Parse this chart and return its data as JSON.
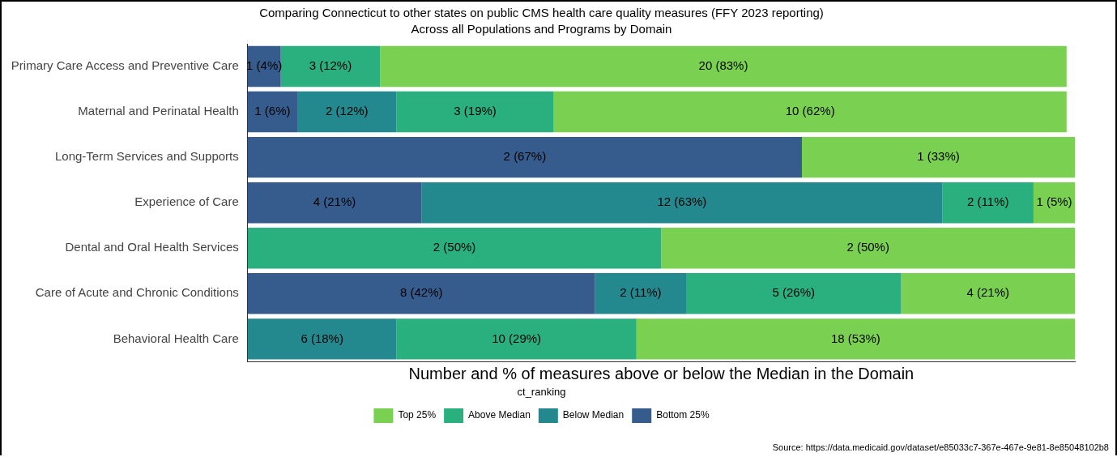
{
  "chart_data": {
    "type": "bar",
    "orientation": "horizontal",
    "stacked": true,
    "tick_labels": "y",
    "title": "Comparing Connecticut to other states on public CMS health care quality measures (FFY 2023 reporting)",
    "subtitle": "Across all Populations and Programs by Domain",
    "xlabel": "Number and % of measures above or below the Median in the Domain",
    "legend_title": "ct_ranking",
    "legend": "bottom",
    "annotations": [
      "Source: https://data.medicaid.gov/dataset/e85033c7-367e-467e-9e81-8e85048102b8"
    ],
    "categories": [
      "Primary Care Access and Preventive Care",
      "Maternal and Perinatal Health",
      "Long-Term Services and Supports",
      "Experience of Care",
      "Dental and Oral Health Services",
      "Care of Acute and Chronic Conditions",
      "Behavioral Health Care"
    ],
    "series": [
      {
        "name": "Bottom 25%",
        "color": "#365c8d",
        "values": [
          4,
          6,
          67,
          21,
          null,
          42,
          null
        ],
        "value_labels": [
          "1 (4%)",
          "1 (6%)",
          "2 (67%)",
          "4 (21%)",
          null,
          "8 (42%)",
          null
        ]
      },
      {
        "name": "Below Median",
        "color": "#23898e",
        "values": [
          null,
          12,
          null,
          63,
          null,
          11,
          18
        ],
        "value_labels": [
          null,
          "2 (12%)",
          null,
          "12 (63%)",
          null,
          "2 (11%)",
          "6 (18%)"
        ]
      },
      {
        "name": "Above Median",
        "color": "#2ab07f",
        "values": [
          12,
          19,
          null,
          11,
          50,
          26,
          29
        ],
        "value_labels": [
          "3 (12%)",
          "3 (19%)",
          null,
          "2 (11%)",
          "2 (50%)",
          "5 (26%)",
          "10 (29%)"
        ]
      },
      {
        "name": "Top 25%",
        "color": "#7ad151",
        "values": [
          83,
          62,
          33,
          5,
          50,
          21,
          53
        ],
        "value_labels": [
          "20 (83%)",
          "10 (62%)",
          "1 (33%)",
          "1 (5%)",
          "2 (50%)",
          "4 (21%)",
          "18 (53%)"
        ]
      }
    ]
  }
}
